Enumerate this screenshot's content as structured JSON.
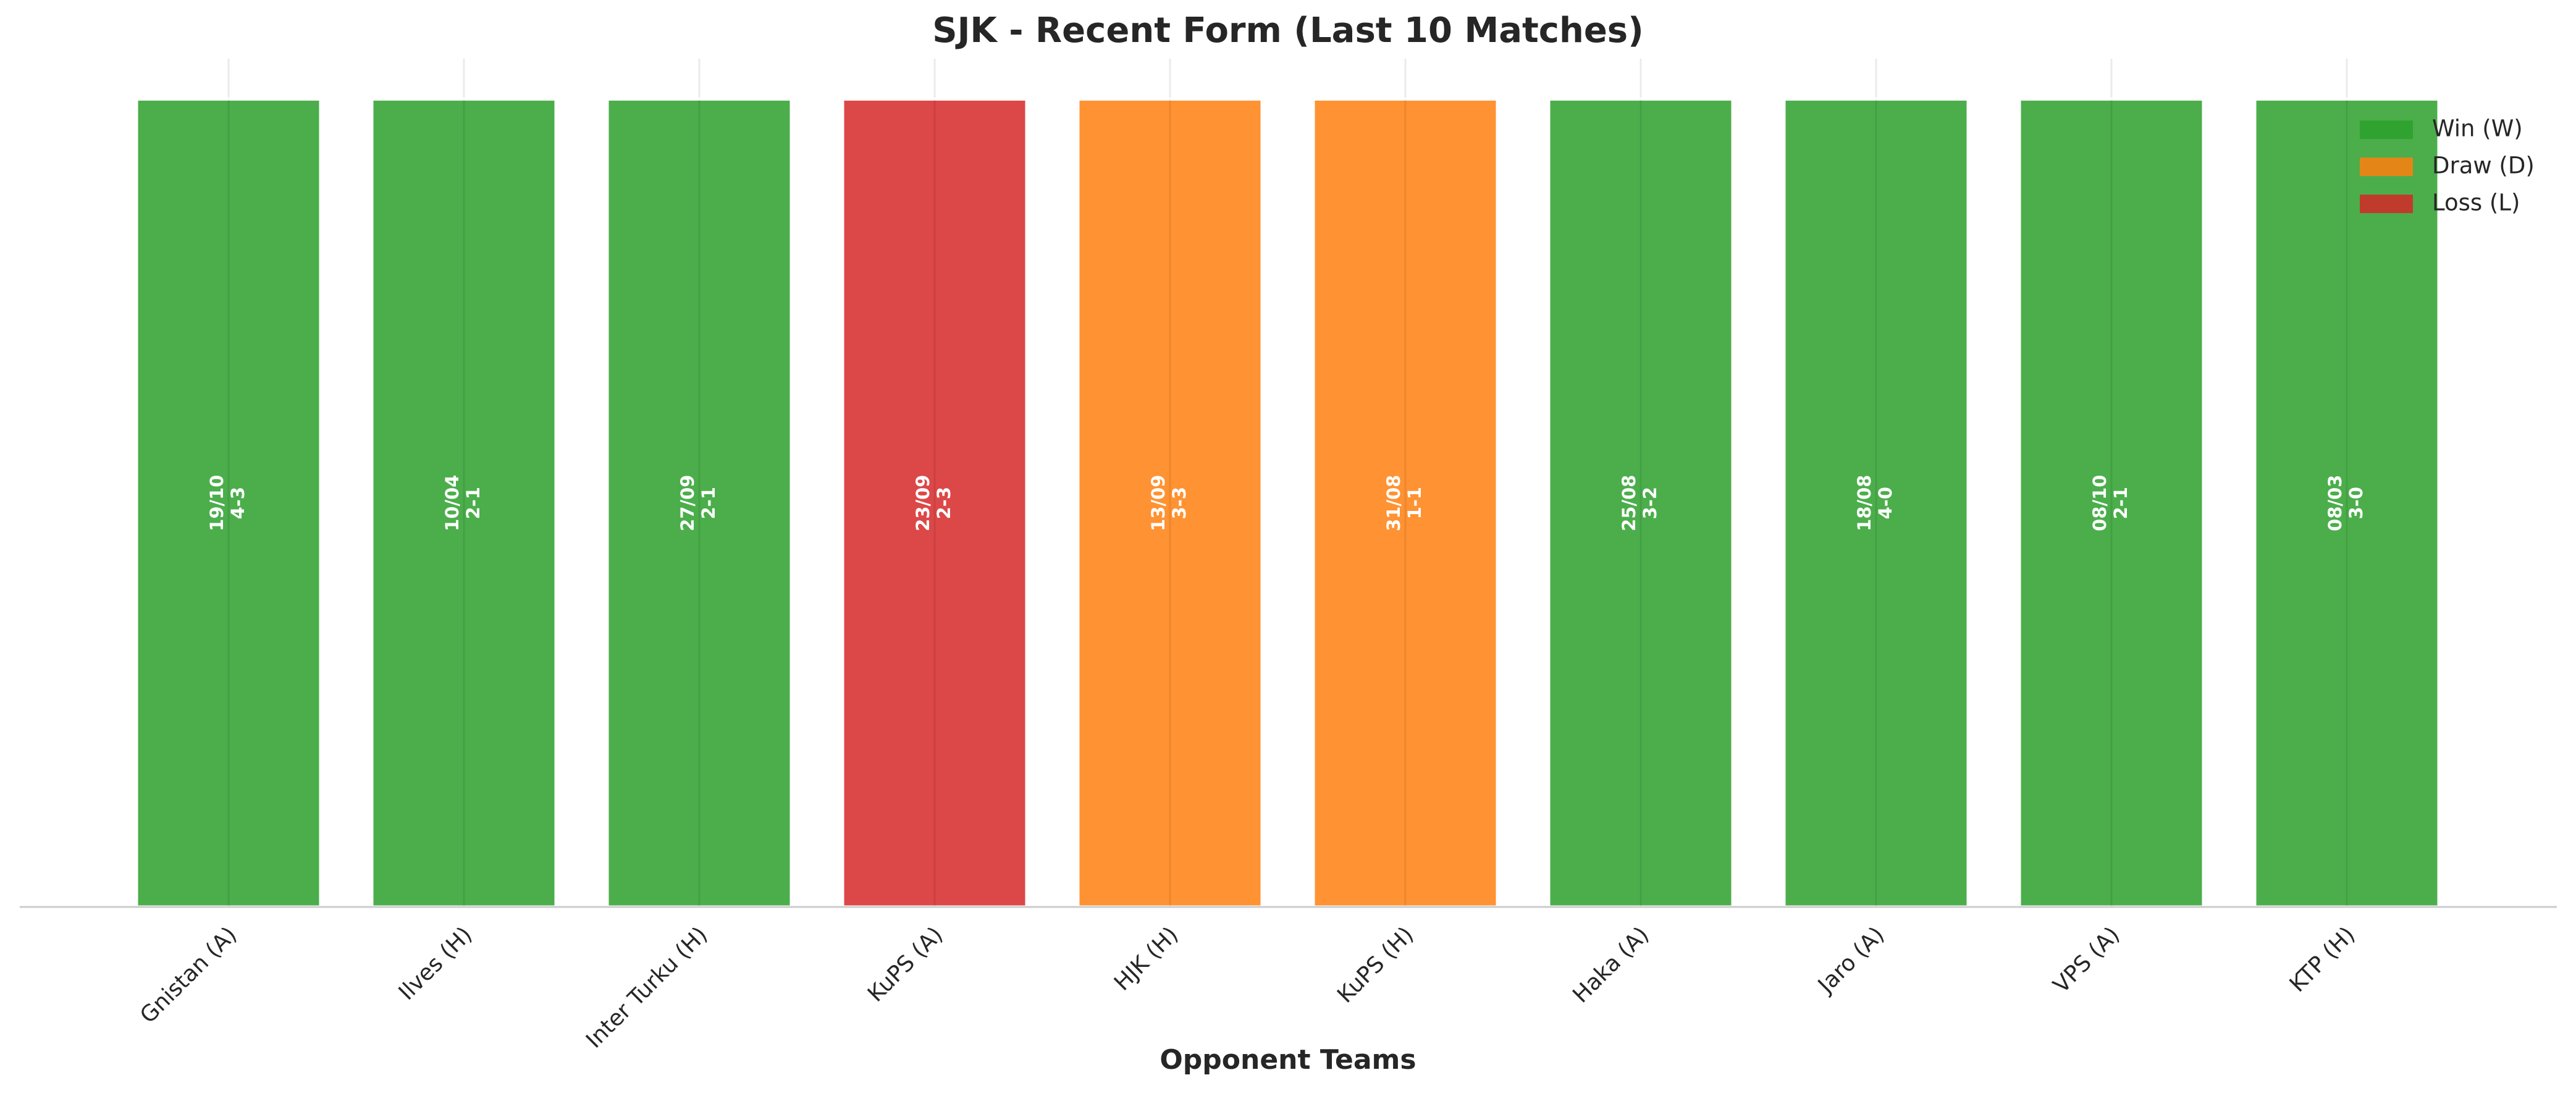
{
  "chart_data": {
    "type": "bar",
    "title": "SJK - Recent Form (Last 10 Matches)",
    "x_label": "Opponent Teams",
    "categories": [
      "Gnistan (A)",
      "Ilves (H)",
      "Inter Turku (H)",
      "KuPS (A)",
      "HJK (H)",
      "KuPS (H)",
      "Haka (A)",
      "Jaro (A)",
      "VPS (A)",
      "KTP (H)"
    ],
    "values": [
      1,
      1,
      1,
      1,
      1,
      1,
      1,
      1,
      1,
      1
    ],
    "dates": [
      "19/10",
      "10/04",
      "27/09",
      "23/09",
      "13/09",
      "31/08",
      "25/08",
      "18/08",
      "08/10",
      "08/03"
    ],
    "scores": [
      "4-3",
      "2-1",
      "2-1",
      "2-3",
      "3-3",
      "1-1",
      "3-2",
      "4-0",
      "2-1",
      "3-0"
    ],
    "colors": [
      "#2ca02c",
      "#2ca02c",
      "#2ca02c",
      "#d62728",
      "#ff7f0e",
      "#ff7f0e",
      "#2ca02c",
      "#2ca02c",
      "#2ca02c",
      "#2ca02c"
    ],
    "ylim": [
      0,
      1.05
    ],
    "grid": true,
    "legend_position": "upper right",
    "legend": [
      {
        "name": "Win (W)",
        "color": "#2ca02c"
      },
      {
        "name": "Draw (D)",
        "color": "#ff7f0e"
      },
      {
        "name": "Loss (L)",
        "color": "#d62728"
      }
    ]
  }
}
